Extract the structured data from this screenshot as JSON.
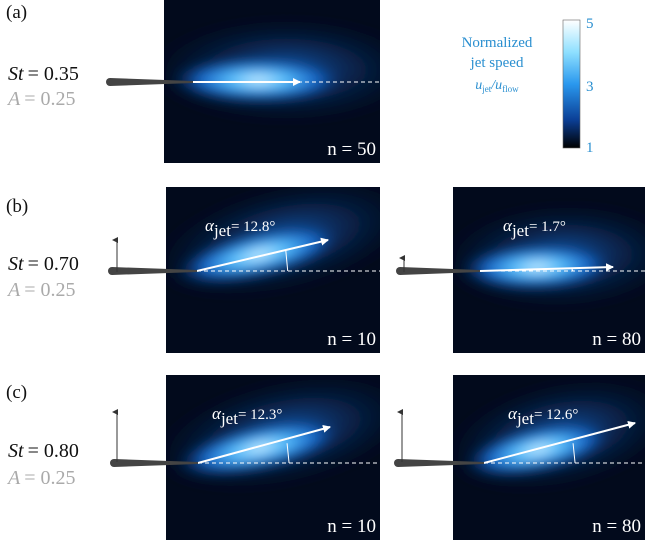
{
  "panels": [
    {
      "label": "(a)",
      "st_label": "St",
      "st_value": "= 0.35",
      "a_label": "A",
      "a_value": "= 0.25",
      "frames": [
        {
          "n": "n = 50"
        }
      ]
    },
    {
      "label": "(b)",
      "st_label": "St",
      "st_value": "= 0.70",
      "a_label": "A",
      "a_value": "= 0.25",
      "frames": [
        {
          "n": "n = 10",
          "alpha_symbol": "α",
          "alpha_sub": "jet",
          "alpha_value": "= 12.8°"
        },
        {
          "n": "n = 80",
          "alpha_symbol": "α",
          "alpha_sub": "jet",
          "alpha_value": "= 1.7°"
        }
      ]
    },
    {
      "label": "(c)",
      "st_label": "St",
      "st_value": "= 0.80",
      "a_label": "A",
      "a_value": "= 0.25",
      "frames": [
        {
          "n": "n = 10",
          "alpha_symbol": "α",
          "alpha_sub": "jet",
          "alpha_value": "= 12.3°"
        },
        {
          "n": "n = 80",
          "alpha_symbol": "α",
          "alpha_sub": "jet",
          "alpha_value": "= 12.6°"
        }
      ]
    }
  ],
  "colorbar": {
    "title_lines": [
      "Normalized",
      "jet speed"
    ],
    "ratio": {
      "u1": "u",
      "sub1": "jet",
      "slash": "/u",
      "sub2": "flow"
    },
    "ticks": [
      "5",
      "3",
      "1"
    ]
  }
}
